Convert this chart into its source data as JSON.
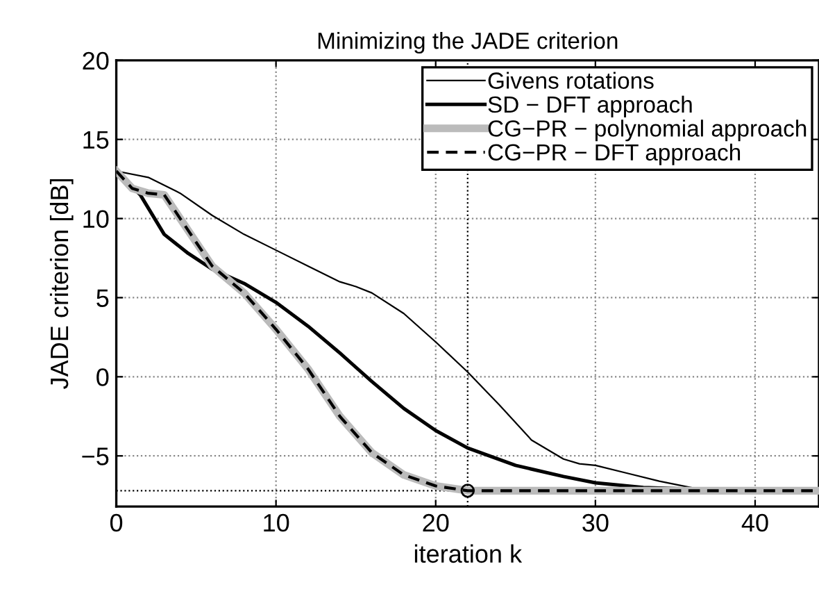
{
  "chart_data": {
    "type": "line",
    "title": "Minimizing the JADE criterion",
    "xlabel": "iteration k",
    "ylabel": "JADE criterion [dB]",
    "xlim": [
      0,
      44
    ],
    "ylim": [
      -8.2,
      20
    ],
    "xticks": [
      0,
      10,
      20,
      30,
      40
    ],
    "yticks": [
      -5,
      0,
      5,
      10,
      15,
      20
    ],
    "grid": true,
    "legend": "top right",
    "series": [
      {
        "name": "Givens rotations",
        "color": "#000000",
        "line_style": "solid",
        "x": [
          0,
          2,
          4,
          6,
          8,
          10,
          12,
          14,
          15,
          16,
          18,
          20,
          22,
          24,
          26,
          28,
          29,
          30,
          32,
          34,
          36,
          37,
          40,
          44
        ],
        "values": [
          13,
          12.6,
          11.6,
          10.2,
          9,
          8,
          7,
          6,
          5.7,
          5.3,
          4,
          2.2,
          0.3,
          -1.8,
          -4,
          -5.2,
          -5.5,
          -5.6,
          -6.1,
          -6.6,
          -7,
          -7.2,
          -7.2,
          -7.2
        ]
      },
      {
        "name": "SD − DFT approach",
        "color": "#000000",
        "line_style": "solid",
        "x": [
          0,
          1.5,
          3,
          4.5,
          6,
          8,
          10,
          12,
          14,
          16,
          18,
          20,
          22,
          25,
          28,
          30,
          33,
          36,
          38,
          44
        ],
        "values": [
          13,
          11.5,
          9,
          7.8,
          6.8,
          5.9,
          4.7,
          3.2,
          1.5,
          -0.3,
          -2,
          -3.4,
          -4.5,
          -5.6,
          -6.3,
          -6.7,
          -7,
          -7.1,
          -7.2,
          -7.2
        ]
      },
      {
        "name": "CG−PR − polynomial approach",
        "color": "#bbbbbb",
        "line_style": "solid",
        "x": [
          0,
          1,
          2,
          3,
          4,
          5,
          6,
          8,
          10,
          12,
          14,
          16,
          18,
          20,
          22,
          44
        ],
        "values": [
          13,
          11.9,
          11.6,
          11.5,
          10,
          8.5,
          7,
          5.3,
          3,
          0.5,
          -2.5,
          -4.8,
          -6.2,
          -6.9,
          -7.2,
          -7.2
        ]
      },
      {
        "name": "CG−PR − DFT approach",
        "color": "#000000",
        "line_style": "dashed",
        "x": [
          0,
          1,
          2,
          3,
          4,
          5,
          6,
          8,
          10,
          12,
          14,
          16,
          18,
          20,
          22,
          44
        ],
        "values": [
          13,
          11.9,
          11.6,
          11.5,
          10,
          8.5,
          7,
          5.3,
          3,
          0.5,
          -2.5,
          -4.8,
          -6.2,
          -6.9,
          -7.2,
          -7.2
        ]
      },
      {
        "type": "scatter",
        "color": "#000000",
        "marker": "circle",
        "x": [
          22
        ],
        "values": [
          -7.2
        ]
      }
    ],
    "ref_lines": [
      {
        "axis": "x",
        "value": 22,
        "line_style": "dotted",
        "color": "#000000"
      },
      {
        "axis": "y",
        "value": -7.2,
        "line_style": "dotted",
        "color": "#000000"
      }
    ]
  }
}
